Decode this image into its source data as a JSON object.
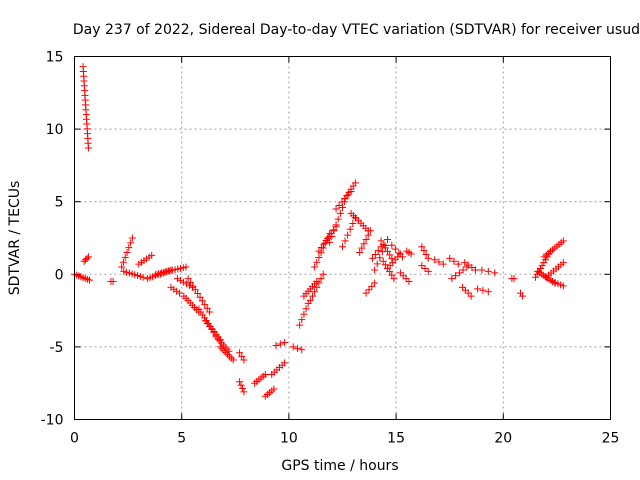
{
  "chart_data": {
    "type": "scatter",
    "title": "Day 237 of 2022, Sidereal Day-to-day VTEC variation (SDTVAR) for receiver usud",
    "xlabel": "GPS time / hours",
    "ylabel": "SDTVAR / TECUs",
    "xlim": [
      0,
      25
    ],
    "ylim": [
      -10,
      15
    ],
    "xticks": [
      0,
      5,
      10,
      15,
      20,
      25
    ],
    "yticks": [
      -10,
      -5,
      0,
      5,
      10,
      15
    ],
    "xtick_labels": [
      "0",
      "5",
      "10",
      "15",
      "20",
      "25"
    ],
    "ytick_labels": [
      "-10",
      "-5",
      "0",
      "5",
      "10",
      "15"
    ],
    "grid": true,
    "marker": "+",
    "series": [
      {
        "name": "SDTVAR",
        "color": "#ff0000",
        "segments": [
          {
            "t0": 0.4,
            "t1": 0.65,
            "y0": 14.3,
            "y1": 8.7,
            "n": 18
          },
          {
            "t0": 0.0,
            "t1": 0.7,
            "y0": 0.0,
            "y1": -0.4,
            "n": 8
          },
          {
            "t0": 0.45,
            "t1": 0.65,
            "y0": 0.9,
            "y1": 1.2,
            "n": 4
          },
          {
            "t0": 1.7,
            "t1": 1.8,
            "y0": -0.5,
            "y1": -0.5,
            "n": 2
          },
          {
            "t0": 2.2,
            "t1": 2.7,
            "y0": 0.5,
            "y1": 2.5,
            "n": 7
          },
          {
            "t0": 2.3,
            "t1": 3.2,
            "y0": 0.2,
            "y1": -0.2,
            "n": 8
          },
          {
            "t0": 3.0,
            "t1": 3.6,
            "y0": 0.7,
            "y1": 1.3,
            "n": 6
          },
          {
            "t0": 3.4,
            "t1": 4.5,
            "y0": -0.3,
            "y1": 0.3,
            "n": 10
          },
          {
            "t0": 3.8,
            "t1": 5.2,
            "y0": 0.0,
            "y1": 0.5,
            "n": 12
          },
          {
            "t0": 4.5,
            "t1": 4.9,
            "y0": -0.9,
            "y1": -1.3,
            "n": 4
          },
          {
            "t0": 4.8,
            "t1": 5.5,
            "y0": -0.3,
            "y1": -0.9,
            "n": 6
          },
          {
            "t0": 5.1,
            "t1": 5.8,
            "y0": -1.5,
            "y1": -2.6,
            "n": 8
          },
          {
            "t0": 5.3,
            "t1": 6.3,
            "y0": -0.3,
            "y1": -2.6,
            "n": 10
          },
          {
            "t0": 5.8,
            "t1": 6.6,
            "y0": -2.4,
            "y1": -4.2,
            "n": 10
          },
          {
            "t0": 6.1,
            "t1": 6.8,
            "y0": -3.2,
            "y1": -4.5,
            "n": 8
          },
          {
            "t0": 6.6,
            "t1": 7.2,
            "y0": -4.3,
            "y1": -5.3,
            "n": 8
          },
          {
            "t0": 6.8,
            "t1": 7.4,
            "y0": -5.0,
            "y1": -5.9,
            "n": 8
          },
          {
            "t0": 7.7,
            "t1": 7.9,
            "y0": -5.4,
            "y1": -5.9,
            "n": 3
          },
          {
            "t0": 7.7,
            "t1": 7.9,
            "y0": -7.4,
            "y1": -8.1,
            "n": 4
          },
          {
            "t0": 8.4,
            "t1": 8.9,
            "y0": -7.5,
            "y1": -6.9,
            "n": 6
          },
          {
            "t0": 8.9,
            "t1": 9.3,
            "y0": -8.4,
            "y1": -7.9,
            "n": 5
          },
          {
            "t0": 9.2,
            "t1": 9.8,
            "y0": -6.9,
            "y1": -6.1,
            "n": 6
          },
          {
            "t0": 9.4,
            "t1": 9.8,
            "y0": -4.9,
            "y1": -4.7,
            "n": 3
          },
          {
            "t0": 10.2,
            "t1": 10.6,
            "y0": -5.0,
            "y1": -5.2,
            "n": 3
          },
          {
            "t0": 10.5,
            "t1": 10.9,
            "y0": -3.5,
            "y1": -2.0,
            "n": 5
          },
          {
            "t0": 10.7,
            "t1": 11.3,
            "y0": -1.5,
            "y1": -0.5,
            "n": 7
          },
          {
            "t0": 11.0,
            "t1": 11.6,
            "y0": -1.8,
            "y1": 0.0,
            "n": 7
          },
          {
            "t0": 11.2,
            "t1": 11.9,
            "y0": 0.5,
            "y1": 2.8,
            "n": 8
          },
          {
            "t0": 11.4,
            "t1": 12.2,
            "y0": 1.6,
            "y1": 3.3,
            "n": 8
          },
          {
            "t0": 11.9,
            "t1": 12.6,
            "y0": 2.2,
            "y1": 5.0,
            "n": 8
          },
          {
            "t0": 12.2,
            "t1": 12.9,
            "y0": 4.5,
            "y1": 5.7,
            "n": 6
          },
          {
            "t0": 12.6,
            "t1": 13.1,
            "y0": 5.2,
            "y1": 6.3,
            "n": 6
          },
          {
            "t0": 12.9,
            "t1": 13.7,
            "y0": 4.2,
            "y1": 3.0,
            "n": 8
          },
          {
            "t0": 12.5,
            "t1": 13.1,
            "y0": 1.9,
            "y1": 3.9,
            "n": 6
          },
          {
            "t0": 13.3,
            "t1": 13.8,
            "y0": 1.5,
            "y1": 3.0,
            "n": 6
          },
          {
            "t0": 13.6,
            "t1": 14.0,
            "y0": -1.3,
            "y1": -0.6,
            "n": 4
          },
          {
            "t0": 13.9,
            "t1": 14.3,
            "y0": 1.1,
            "y1": 1.9,
            "n": 4
          },
          {
            "t0": 14.0,
            "t1": 14.6,
            "y0": 0.3,
            "y1": 2.4,
            "n": 6
          },
          {
            "t0": 14.3,
            "t1": 14.8,
            "y0": 2.3,
            "y1": 1.1,
            "n": 6
          },
          {
            "t0": 14.4,
            "t1": 14.9,
            "y0": 0.9,
            "y1": -0.3,
            "n": 6
          },
          {
            "t0": 14.6,
            "t1": 15.2,
            "y0": 0.4,
            "y1": 1.4,
            "n": 6
          },
          {
            "t0": 14.8,
            "t1": 15.3,
            "y0": 2.0,
            "y1": 1.2,
            "n": 4
          },
          {
            "t0": 15.2,
            "t1": 15.6,
            "y0": 0.1,
            "y1": -0.5,
            "n": 4
          },
          {
            "t0": 15.5,
            "t1": 15.7,
            "y0": 1.6,
            "y1": 1.4,
            "n": 3
          },
          {
            "t0": 16.2,
            "t1": 16.5,
            "y0": 1.9,
            "y1": 1.1,
            "n": 4
          },
          {
            "t0": 16.2,
            "t1": 16.5,
            "y0": 0.6,
            "y1": 0.2,
            "n": 3
          },
          {
            "t0": 16.8,
            "t1": 17.2,
            "y0": 1.0,
            "y1": 0.7,
            "n": 3
          },
          {
            "t0": 17.5,
            "t1": 17.9,
            "y0": 1.1,
            "y1": 0.7,
            "n": 3
          },
          {
            "t0": 17.6,
            "t1": 18.3,
            "y0": -0.3,
            "y1": 0.5,
            "n": 5
          },
          {
            "t0": 18.1,
            "t1": 18.5,
            "y0": -0.9,
            "y1": -1.5,
            "n": 4
          },
          {
            "t0": 18.2,
            "t1": 18.7,
            "y0": 0.8,
            "y1": 0.3,
            "n": 4
          },
          {
            "t0": 18.8,
            "t1": 19.3,
            "y0": -1.0,
            "y1": -1.2,
            "n": 3
          },
          {
            "t0": 19.0,
            "t1": 19.6,
            "y0": 0.3,
            "y1": 0.1,
            "n": 3
          },
          {
            "t0": 20.4,
            "t1": 20.5,
            "y0": -0.3,
            "y1": -0.3,
            "n": 2
          },
          {
            "t0": 20.8,
            "t1": 20.9,
            "y0": -1.3,
            "y1": -1.5,
            "n": 2
          },
          {
            "t0": 21.5,
            "t1": 22.2,
            "y0": -0.2,
            "y1": 1.6,
            "n": 10
          },
          {
            "t0": 21.6,
            "t1": 22.4,
            "y0": 0.2,
            "y1": -0.6,
            "n": 10
          },
          {
            "t0": 21.9,
            "t1": 22.8,
            "y0": 1.2,
            "y1": 2.3,
            "n": 10
          },
          {
            "t0": 22.0,
            "t1": 22.8,
            "y0": -0.2,
            "y1": 0.8,
            "n": 8
          },
          {
            "t0": 22.3,
            "t1": 22.8,
            "y0": -0.5,
            "y1": -0.8,
            "n": 5
          }
        ]
      }
    ]
  }
}
